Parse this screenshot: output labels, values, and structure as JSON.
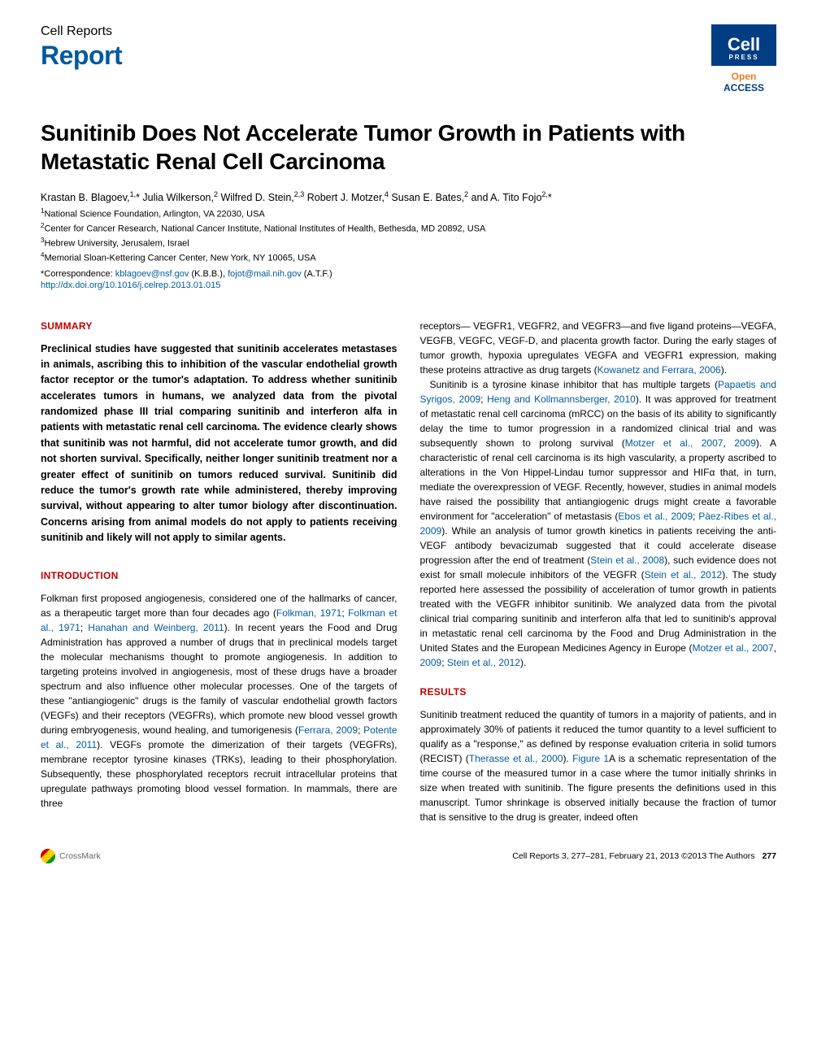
{
  "header": {
    "journal": "Cell Reports",
    "articleType": "Report",
    "badge": {
      "name": "Cell",
      "sub": "PRESS"
    },
    "openAccess": {
      "line1": "Open",
      "line2": "ACCESS"
    }
  },
  "title": "Sunitinib Does Not Accelerate Tumor Growth in Patients with Metastatic Renal Cell Carcinoma",
  "authors_html": "Krastan B. Blagoev,<sup>1,</sup>* Julia Wilkerson,<sup>2</sup> Wilfred D. Stein,<sup>2,3</sup> Robert J. Motzer,<sup>4</sup> Susan E. Bates,<sup>2</sup> and A. Tito Fojo<sup>2,</sup>*",
  "affiliations": [
    "National Science Foundation, Arlington, VA 22030, USA",
    "Center for Cancer Research, National Cancer Institute, National Institutes of Health, Bethesda, MD 20892, USA",
    "Hebrew University, Jerusalem, Israel",
    "Memorial Sloan-Kettering Cancer Center, New York, NY 10065, USA"
  ],
  "correspondence": {
    "prefix": "*Correspondence: ",
    "email1": "kblagoev@nsf.gov",
    "person1": " (K.B.B.), ",
    "email2": "fojot@mail.nih.gov",
    "person2": " (A.T.F.)"
  },
  "doi": "http://dx.doi.org/10.1016/j.celrep.2013.01.015",
  "sections": {
    "summaryHead": "SUMMARY",
    "summary": "Preclinical studies have suggested that sunitinib accelerates metastases in animals, ascribing this to inhibition of the vascular endothelial growth factor receptor or the tumor's adaptation. To address whether sunitinib accelerates tumors in humans, we analyzed data from the pivotal randomized phase III trial comparing sunitinib and interferon alfa in patients with metastatic renal cell carcinoma. The evidence clearly shows that sunitinib was not harmful, did not accelerate tumor growth, and did not shorten survival. Specifically, neither longer sunitinib treatment nor a greater effect of sunitinib on tumors reduced survival. Sunitinib did reduce the tumor's growth rate while administered, thereby improving survival, without appearing to alter tumor biology after discontinuation. Concerns arising from animal models do not apply to patients receiving sunitinib and likely will not apply to similar agents.",
    "introHead": "INTRODUCTION",
    "intro_p1_a": "Folkman first proposed angiogenesis, considered one of the hallmarks of cancer, as a therapeutic target more than four decades ago (",
    "intro_p1_l1": "Folkman, 1971",
    "intro_p1_b": "; ",
    "intro_p1_l2": "Folkman et al., 1971",
    "intro_p1_c": "; ",
    "intro_p1_l3": "Hanahan and Weinberg, 2011",
    "intro_p1_d": "). In recent years the Food and Drug Administration has approved a number of drugs that in preclinical models target the molecular mechanisms thought to promote angiogenesis. In addition to targeting proteins involved in angiogenesis, most of these drugs have a broader spectrum and also influence other molecular processes. One of the targets of these \"antiangiogenic\" drugs is the family of vascular endothelial growth factors (VEGFs) and their receptors (VEGFRs), which promote new blood vessel growth during embryogenesis, wound healing, and tumorigenesis (",
    "intro_p1_l4": "Ferrara, 2009",
    "intro_p1_e": "; ",
    "intro_p1_l5": "Potente et al., 2011",
    "intro_p1_f": "). VEGFs promote the dimerization of their targets (VEGFRs), membrane receptor tyrosine kinases (TRKs), leading to their phosphorylation. Subsequently, these phosphorylated receptors recruit intracellular proteins that upregulate pathways promoting blood vessel formation. In mammals, there are three",
    "col2_p1_a": "receptors— VEGFR1, VEGFR2, and VEGFR3—and five ligand proteins—VEGFA, VEGFB, VEGFC, VEGF-D, and placenta growth factor. During the early stages of tumor growth, hypoxia upregulates VEGFA and VEGFR1 expression, making these proteins attractive as drug targets (",
    "col2_p1_l1": "Kowanetz and Ferrara, 2006",
    "col2_p1_b": ").",
    "col2_p2_a": "Sunitinib is a tyrosine kinase inhibitor that has multiple targets (",
    "col2_p2_l1": "Papaetis and Syrigos, 2009",
    "col2_p2_b": "; ",
    "col2_p2_l2": "Heng and Kollmannsberger, 2010",
    "col2_p2_c": "). It was approved for treatment of metastatic renal cell carcinoma (mRCC) on the basis of its ability to significantly delay the time to tumor progression in a randomized clinical trial and was subsequently shown to prolong survival (",
    "col2_p2_l3": "Motzer et al., 2007",
    "col2_p2_d": ", ",
    "col2_p2_l4": "2009",
    "col2_p2_e": "). A characteristic of renal cell carcinoma is its high vascularity, a property ascribed to alterations in the Von Hippel-Lindau tumor suppressor and HIFα that, in turn, mediate the overexpression of VEGF. Recently, however, studies in animal models have raised the possibility that antiangiogenic drugs might create a favorable environment for \"acceleration\" of metastasis (",
    "col2_p2_l5": "Ebos et al., 2009",
    "col2_p2_f": "; ",
    "col2_p2_l6": "Pàez-Ribes et al., 2009",
    "col2_p2_g": "). While an analysis of tumor growth kinetics in patients receiving the anti-VEGF antibody bevacizumab suggested that it could accelerate disease progression after the end of treatment (",
    "col2_p2_l7": "Stein et al., 2008",
    "col2_p2_h": "), such evidence does not exist for small molecule inhibitors of the VEGFR (",
    "col2_p2_l8": "Stein et al., 2012",
    "col2_p2_i": "). The study reported here assessed the possibility of acceleration of tumor growth in patients treated with the VEGFR inhibitor sunitinib. We analyzed data from the pivotal clinical trial comparing sunitinib and interferon alfa that led to sunitinib's approval in metastatic renal cell carcinoma by the Food and Drug Administration in the United States and the European Medicines Agency in Europe (",
    "col2_p2_l9": "Motzer et al., 2007",
    "col2_p2_j": ", ",
    "col2_p2_l10": "2009",
    "col2_p2_k": "; ",
    "col2_p2_l11": "Stein et al., 2012",
    "col2_p2_l": ").",
    "resultsHead": "RESULTS",
    "results_p1_a": "Sunitinib treatment reduced the quantity of tumors in a majority of patients, and in approximately 30% of patients it reduced the tumor quantity to a level sufficient to qualify as a \"response,\" as defined by response evaluation criteria in solid tumors (RECIST) (",
    "results_p1_l1": "Therasse et al., 2000",
    "results_p1_b": "). ",
    "results_p1_l2": "Figure 1",
    "results_p1_c": "A is a schematic representation of the time course of the measured tumor in a case where the tumor initially shrinks in size when treated with sunitinib. The figure presents the definitions used in this manuscript. Tumor shrinkage is observed initially because the fraction of tumor that is sensitive to the drug is greater, indeed often"
  },
  "footer": {
    "crossmark": "CrossMark",
    "citation": "Cell Reports 3, 277–281, February 21, 2013 ©2013 The Authors",
    "pageNum": "277"
  },
  "colors": {
    "brandBlue": "#005a9c",
    "darkBlue": "#003d82",
    "redHead": "#c00000",
    "orange": "#e67e22"
  }
}
